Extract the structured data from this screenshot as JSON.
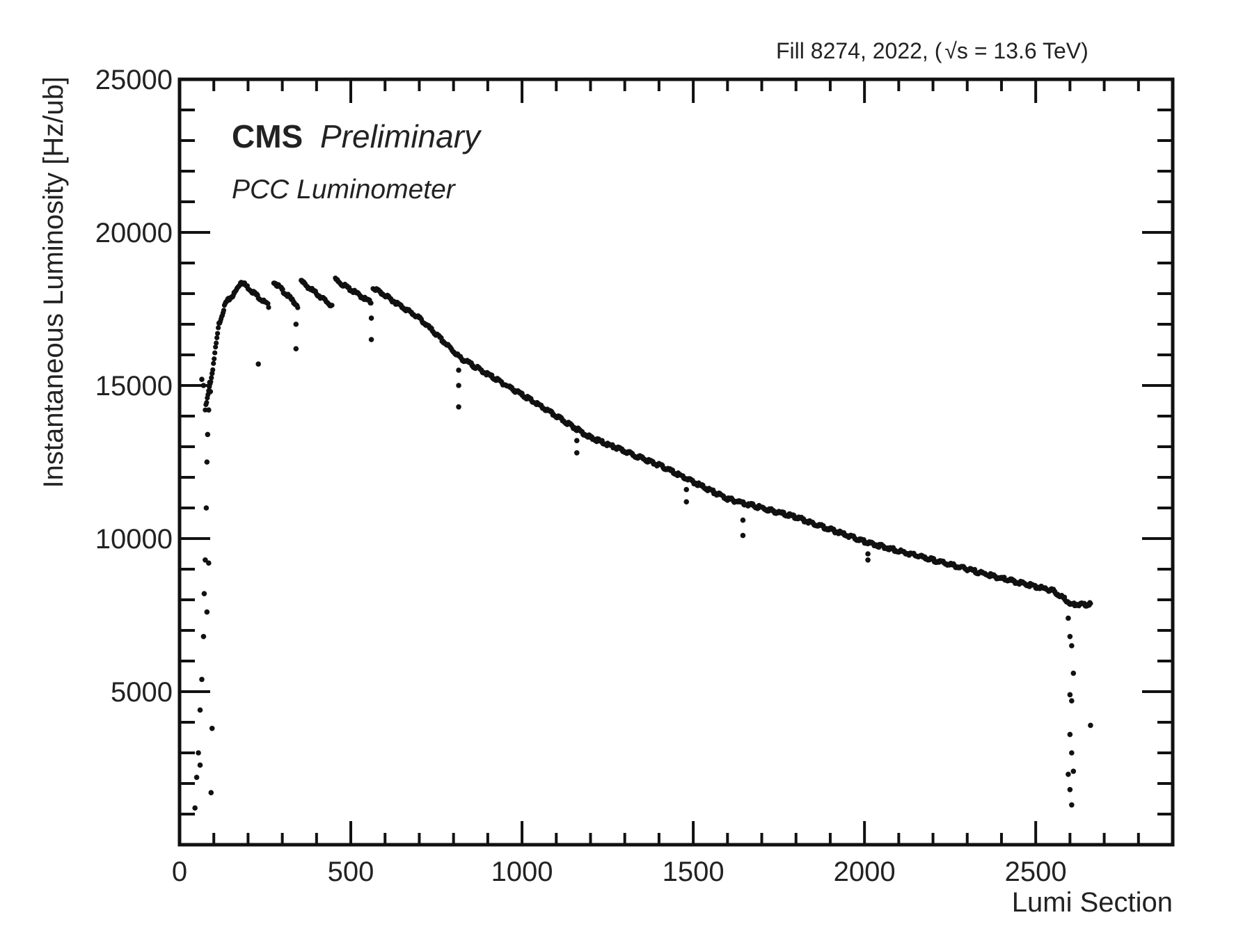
{
  "header": {
    "fill_text": "Fill 8274,  2022,  (",
    "sqrt_s_text": "s",
    "energy_text": " = 13.6 TeV)"
  },
  "labels": {
    "experiment": "CMS",
    "status": "Preliminary",
    "detector": "PCC Luminometer"
  },
  "chart_data": {
    "type": "scatter",
    "title": "",
    "xlabel": "Lumi Section",
    "ylabel": "Instantaneous Luminosity [Hz/ub]",
    "xlim": [
      0,
      2900
    ],
    "ylim": [
      0,
      25000
    ],
    "x_ticks": [
      0,
      500,
      1000,
      1500,
      2000,
      2500
    ],
    "y_ticks": [
      5000,
      10000,
      15000,
      20000,
      25000
    ],
    "grid": false,
    "marker_color": "#111111",
    "curve_segments": [
      {
        "x": [
          75,
          95,
          115,
          135,
          160,
          180
        ],
        "y": [
          14200,
          15400,
          17000,
          17700,
          18000,
          18400
        ]
      },
      {
        "x": [
          180,
          260
        ],
        "y": [
          18400,
          17600
        ]
      },
      {
        "x": [
          275,
          345
        ],
        "y": [
          18400,
          17600
        ]
      },
      {
        "x": [
          355,
          445
        ],
        "y": [
          18400,
          17600
        ]
      },
      {
        "x": [
          455,
          560
        ],
        "y": [
          18450,
          17700
        ]
      },
      {
        "x": [
          565,
          700,
          820,
          1000,
          1200,
          1400,
          1600,
          1800,
          2000,
          2200,
          2400,
          2550,
          2600
        ],
        "y": [
          18200,
          17200,
          15900,
          14700,
          13300,
          12400,
          11300,
          10700,
          9900,
          9300,
          8700,
          8300,
          7900
        ]
      },
      {
        "x": [
          2600,
          2660
        ],
        "y": [
          7850,
          7850
        ]
      }
    ],
    "outlier_points": {
      "x": [
        45,
        50,
        55,
        60,
        65,
        70,
        72,
        75,
        78,
        80,
        82,
        85,
        88,
        90,
        92,
        95,
        65,
        70,
        60,
        80,
        85,
        230,
        340,
        340,
        560,
        560,
        815,
        815,
        815,
        1160,
        1160,
        1480,
        1480,
        1645,
        1645,
        2010,
        2010,
        2595,
        2600,
        2605,
        2610,
        2600,
        2605,
        2600,
        2605,
        2610,
        2600,
        2605,
        2595,
        2660
      ],
      "y": [
        1200,
        2200,
        3000,
        4400,
        5400,
        6800,
        8200,
        9300,
        11000,
        12500,
        13400,
        14200,
        15100,
        14800,
        1700,
        3800,
        15200,
        15000,
        2600,
        7600,
        9200,
        15700,
        16200,
        17000,
        16500,
        17200,
        14300,
        15000,
        15500,
        12800,
        13200,
        11200,
        11600,
        10100,
        10600,
        9300,
        9500,
        7400,
        6800,
        6500,
        5600,
        4900,
        4700,
        3600,
        3000,
        2400,
        1800,
        1300,
        2300,
        3900
      ]
    }
  }
}
